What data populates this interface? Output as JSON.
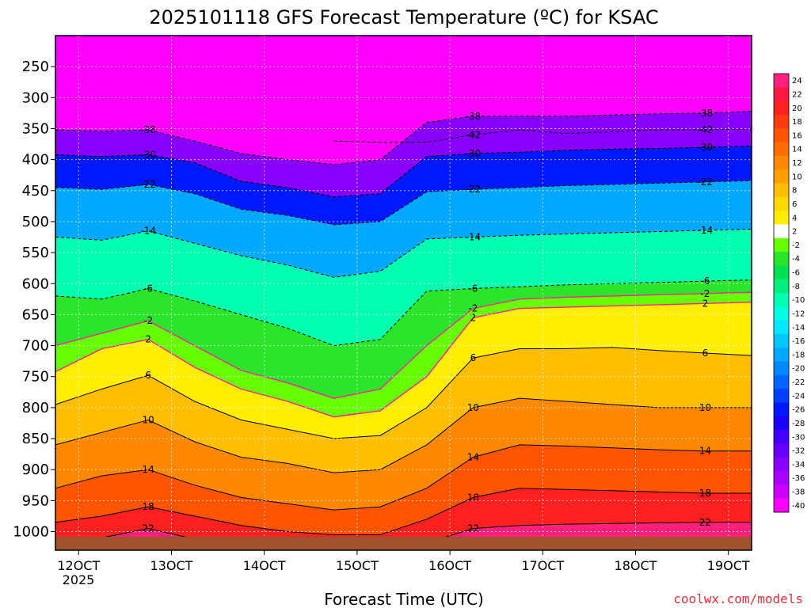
{
  "chart_data": {
    "type": "heatmap",
    "title": "2025101118 GFS Forecast Temperature (ºC) for KSAC",
    "xlabel": "Forecast Time (UTC)",
    "ylabel": "",
    "credit": "coolwx.com/models",
    "x_ticks": [
      "12OCT",
      "13OCT",
      "14OCT",
      "15OCT",
      "16OCT",
      "17OCT",
      "18OCT",
      "19OCT"
    ],
    "x_year": "2025",
    "xlim": [
      "2025-10-11 18",
      "2025-10-19 06"
    ],
    "y_ticks": [
      250,
      300,
      350,
      400,
      450,
      500,
      550,
      600,
      650,
      700,
      750,
      800,
      850,
      900,
      950,
      1000
    ],
    "ylim": [
      1030,
      200
    ],
    "y_unit": "hPa",
    "colorbar": {
      "labels": [
        24,
        22,
        20,
        18,
        16,
        14,
        12,
        10,
        8,
        6,
        4,
        2,
        -2,
        -4,
        -6,
        -8,
        -10,
        -12,
        -14,
        -16,
        -18,
        -20,
        -22,
        -24,
        -26,
        -28,
        -30,
        -32,
        -34,
        -36,
        -38,
        -40
      ],
      "colors": [
        "#ff1f7d",
        "#ff1744",
        "#ff2020",
        "#ff3b10",
        "#ff5500",
        "#ff6d00",
        "#ff8800",
        "#ffa000",
        "#ffbf00",
        "#ffd800",
        "#ffee00",
        "#ffffff",
        "#66ff00",
        "#2be52b",
        "#00e050",
        "#00f080",
        "#00ffb0",
        "#00ffe0",
        "#00e8ff",
        "#00c8ff",
        "#00a8ff",
        "#0088ff",
        "#0066ff",
        "#0040ff",
        "#0018ff",
        "#1a00ff",
        "#4400ff",
        "#6600ff",
        "#8800ff",
        "#aa00ff",
        "#cc00ff",
        "#ff00ff"
      ]
    },
    "ground_color": "#a0522d",
    "x_hours": [
      0,
      12,
      24,
      36,
      48,
      60,
      72,
      84,
      96,
      108,
      120,
      132,
      144,
      156,
      168,
      180
    ],
    "isotherm_pressure": {
      "-42": [
        null,
        null,
        null,
        null,
        null,
        null,
        370,
        372,
        372,
        360,
        352,
        358,
        355,
        352,
        352,
        350
      ],
      "-38": [
        352,
        354,
        352,
        370,
        390,
        400,
        408,
        400,
        340,
        330,
        330,
        330,
        328,
        326,
        325,
        322
      ],
      "-30": [
        392,
        395,
        392,
        405,
        435,
        445,
        460,
        455,
        395,
        390,
        388,
        385,
        383,
        382,
        380,
        378
      ],
      "-22": [
        445,
        448,
        440,
        455,
        480,
        490,
        505,
        500,
        452,
        448,
        445,
        442,
        440,
        438,
        436,
        434
      ],
      "-14": [
        525,
        530,
        515,
        535,
        555,
        570,
        590,
        580,
        528,
        525,
        522,
        520,
        518,
        516,
        514,
        512
      ],
      "-6": [
        620,
        625,
        608,
        628,
        650,
        672,
        700,
        690,
        612,
        608,
        605,
        602,
        600,
        598,
        596,
        594
      ],
      "-2": [
        700,
        680,
        660,
        700,
        740,
        760,
        785,
        770,
        700,
        640,
        625,
        622,
        620,
        618,
        616,
        614
      ],
      "2": [
        742,
        705,
        690,
        735,
        770,
        790,
        815,
        805,
        750,
        655,
        640,
        638,
        636,
        634,
        632,
        630
      ],
      "6": [
        795,
        770,
        748,
        790,
        820,
        835,
        850,
        845,
        800,
        720,
        705,
        705,
        703,
        708,
        712,
        716
      ],
      "10": [
        860,
        840,
        820,
        855,
        880,
        890,
        905,
        900,
        860,
        800,
        785,
        790,
        795,
        800,
        800,
        800
      ],
      "14": [
        930,
        910,
        900,
        925,
        945,
        955,
        965,
        960,
        930,
        880,
        860,
        862,
        865,
        868,
        870,
        870
      ],
      "18": [
        985,
        975,
        960,
        975,
        990,
        1000,
        1005,
        1005,
        980,
        945,
        930,
        932,
        934,
        936,
        938,
        938
      ],
      "22": [
        1015,
        1010,
        995,
        1012,
        1025,
        1030,
        1030,
        1030,
        1018,
        995,
        990,
        988,
        987,
        986,
        985,
        985
      ]
    }
  }
}
